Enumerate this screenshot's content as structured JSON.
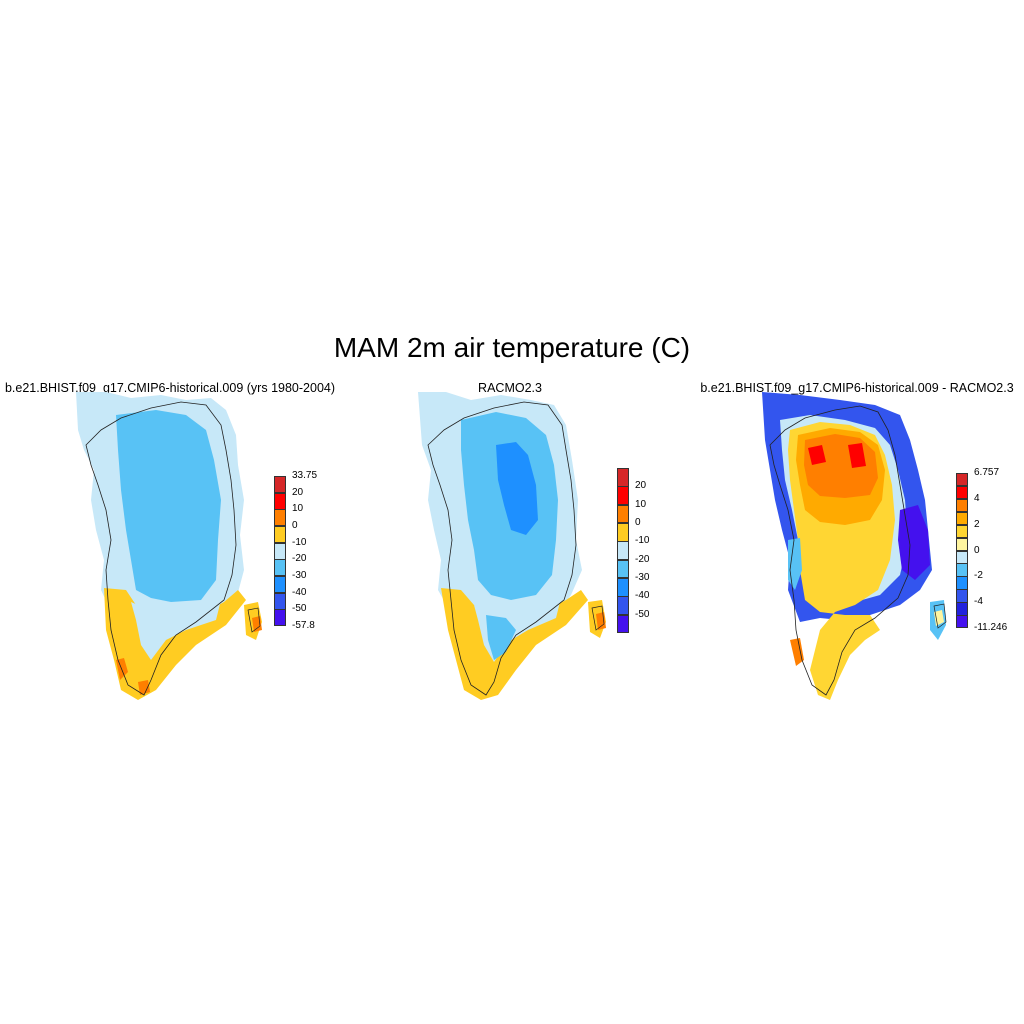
{
  "title": "MAM 2m air temperature (C)",
  "panels": [
    {
      "id": "cesm",
      "title": "b.e21.BHIST.f09_g17.CMIP6-historical.009 (yrs 1980-2004)",
      "colorbar": {
        "labels": [
          "33.75",
          "20",
          "10",
          "0",
          "-10",
          "-20",
          "-30",
          "-40",
          "-50",
          "-57.8"
        ],
        "colors": [
          "#d62728",
          "#ff0000",
          "#ff7f00",
          "#ffcc22",
          "#c7e8f8",
          "#58c2f5",
          "#1e90ff",
          "#3355ee",
          "#4411ee"
        ]
      }
    },
    {
      "id": "racmo",
      "title": "RACMO2.3",
      "colorbar": {
        "labels": [
          "20",
          "10",
          "0",
          "-10",
          "-20",
          "-30",
          "-40",
          "-50"
        ],
        "colors": [
          "#d62728",
          "#ff0000",
          "#ff7f00",
          "#ffcc22",
          "#c7e8f8",
          "#58c2f5",
          "#1e90ff",
          "#3355ee",
          "#4411ee"
        ]
      }
    },
    {
      "id": "diff",
      "title": "b.e21.BHIST.f09_g17.CMIP6-historical.009 - RACMO2.3",
      "colorbar": {
        "labels": [
          "6.757",
          "4",
          "2",
          "0",
          "-2",
          "-4",
          "-11.246"
        ],
        "colors": [
          "#d62728",
          "#ff0000",
          "#ff7f00",
          "#ffaa00",
          "#ffd633",
          "#fff5a0",
          "#c7e8f8",
          "#58c2f5",
          "#1e90ff",
          "#3355ee",
          "#2222dd",
          "#4411ee"
        ]
      }
    }
  ]
}
